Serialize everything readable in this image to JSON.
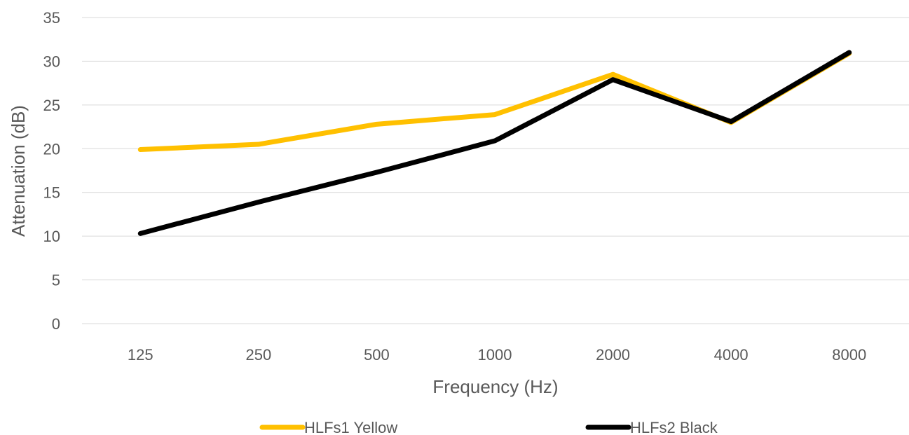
{
  "chart_data": {
    "type": "line",
    "categories": [
      "125",
      "250",
      "500",
      "1000",
      "2000",
      "4000",
      "8000"
    ],
    "series": [
      {
        "name": "HLFs1 Yellow",
        "color": "#FFC000",
        "values": [
          19.9,
          20.5,
          22.8,
          23.9,
          28.5,
          23.0,
          30.9
        ]
      },
      {
        "name": "HLFs2 Black",
        "color": "#000000",
        "values": [
          10.3,
          13.9,
          17.3,
          20.9,
          27.9,
          23.1,
          31.0
        ]
      }
    ],
    "title": "",
    "xlabel": "Frequency (Hz)",
    "ylabel": "Attenuation (dB)",
    "ylim": [
      0,
      35
    ],
    "yticks": [
      0,
      5,
      10,
      15,
      20,
      25,
      30,
      35
    ],
    "grid": true,
    "legend": "bottom"
  }
}
